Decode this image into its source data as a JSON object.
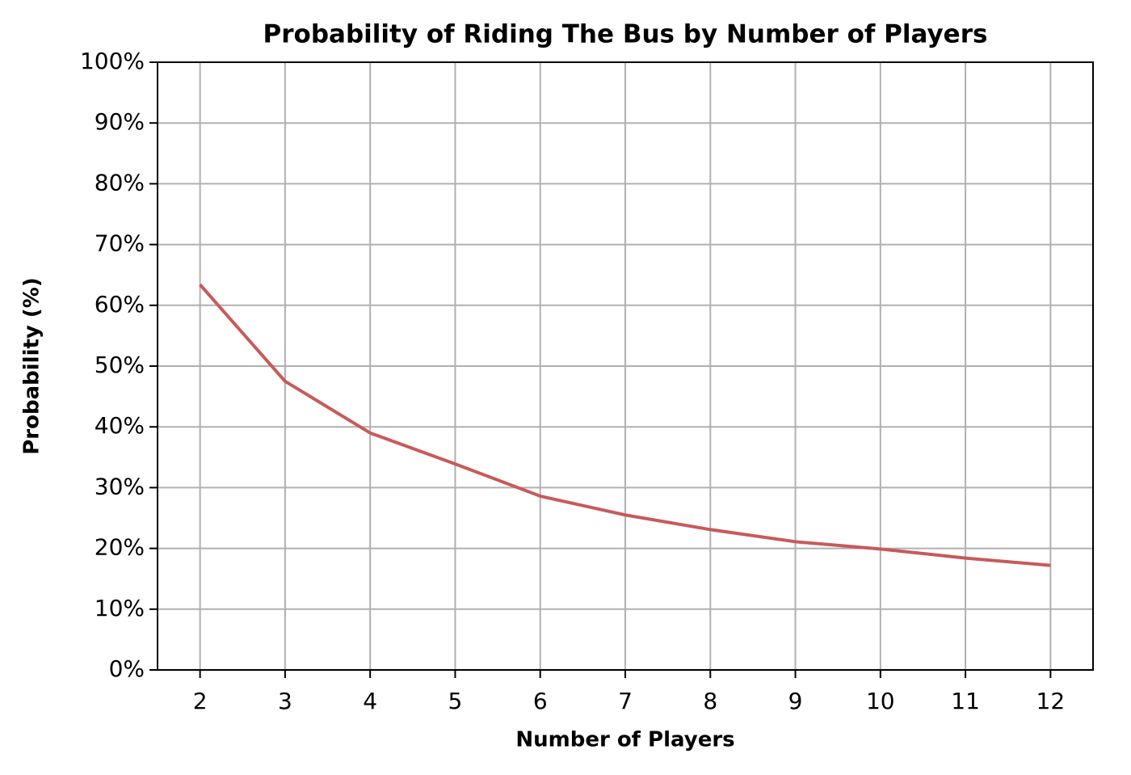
{
  "chart_data": {
    "type": "line",
    "title": "Probability of Riding The Bus by Number of Players",
    "x_label": "Number of Players",
    "y_label": "Probability (%)",
    "x": [
      2,
      3,
      4,
      5,
      6,
      7,
      8,
      9,
      10,
      11,
      12
    ],
    "series": [
      {
        "name": "Probability",
        "color": "#c85a5a",
        "values": [
          63.4,
          47.5,
          39.0,
          33.9,
          28.6,
          25.5,
          23.1,
          21.1,
          19.9,
          18.4,
          17.2
        ]
      }
    ],
    "xlim": [
      1.5,
      12.5
    ],
    "ylim": [
      0,
      100
    ],
    "xticks": [
      2,
      3,
      4,
      5,
      6,
      7,
      8,
      9,
      10,
      11,
      12
    ],
    "yticks": [
      {
        "value": 0,
        "label": "0%"
      },
      {
        "value": 10,
        "label": "10%"
      },
      {
        "value": 20,
        "label": "20%"
      },
      {
        "value": 30,
        "label": "30%"
      },
      {
        "value": 40,
        "label": "40%"
      },
      {
        "value": 50,
        "label": "50%"
      },
      {
        "value": 60,
        "label": "60%"
      },
      {
        "value": 70,
        "label": "70%"
      },
      {
        "value": 80,
        "label": "80%"
      },
      {
        "value": 90,
        "label": "90%"
      },
      {
        "value": 100,
        "label": "100%"
      }
    ],
    "grid": true
  }
}
